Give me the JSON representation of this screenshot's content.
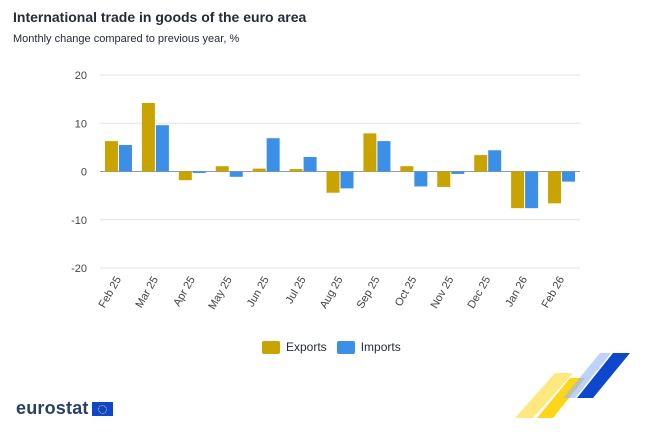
{
  "header": {
    "title": "International trade in goods of the euro area",
    "subtitle": "Monthly change compared to previous year, %"
  },
  "chart_data": {
    "type": "bar",
    "title": "International trade in goods of the euro area",
    "subtitle": "Monthly change compared to previous year, %",
    "xlabel": "",
    "ylabel": "",
    "ylim": [
      -20,
      20
    ],
    "yticks": [
      20,
      10,
      0,
      -10,
      -20
    ],
    "grid": true,
    "legend_position": "bottom",
    "categories": [
      "Feb 25",
      "Mar 25",
      "Apr 25",
      "May 25",
      "Jun 25",
      "Jul 25",
      "Aug 25",
      "Sep 25",
      "Oct 25",
      "Nov 25",
      "Dec 25",
      "Jan 26",
      "Feb 26"
    ],
    "series": [
      {
        "name": "Exports",
        "color": "#c9a400",
        "values": [
          6.3,
          14.2,
          -1.8,
          1.1,
          0.6,
          0.5,
          -4.4,
          7.9,
          1.1,
          -3.2,
          3.4,
          -7.6,
          -6.6
        ]
      },
      {
        "name": "Imports",
        "color": "#3b8fe6",
        "values": [
          5.5,
          9.6,
          -0.3,
          -1.1,
          6.9,
          3.0,
          -3.5,
          6.3,
          -3.1,
          -0.5,
          4.4,
          -7.6,
          -2.1
        ]
      }
    ]
  },
  "legend": {
    "exports_label": "Exports",
    "imports_label": "Imports",
    "exports_color": "#c9a400",
    "imports_color": "#3b8fe6"
  },
  "branding": {
    "logo_text": "eurostat",
    "decor_colors": [
      "#ffd617",
      "#0e47cb"
    ]
  }
}
